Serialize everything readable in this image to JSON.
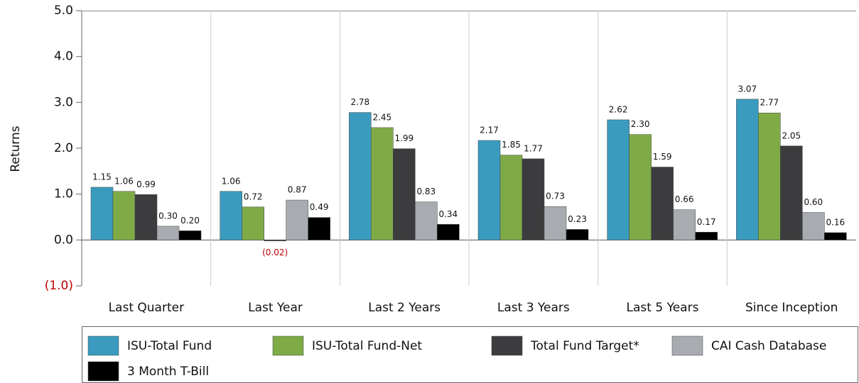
{
  "chart_data": {
    "type": "bar",
    "y_label": "Returns",
    "categories": [
      "Last Quarter",
      "Last Year",
      "Last 2 Years",
      "Last 3 Years",
      "Last 5 Years",
      "Since Inception"
    ],
    "series": [
      {
        "name": "ISU-Total Fund",
        "color": "#3a9bbf",
        "values": [
          1.15,
          1.06,
          2.78,
          2.17,
          2.62,
          3.07
        ],
        "value_labels": [
          "1.15",
          "1.06",
          "2.78",
          "2.17",
          "2.62",
          "3.07"
        ]
      },
      {
        "name": "ISU-Total Fund-Net",
        "color": "#7fab47",
        "values": [
          1.06,
          0.72,
          2.45,
          1.85,
          2.3,
          2.77
        ],
        "value_labels": [
          "1.06",
          "0.72",
          "2.45",
          "1.85",
          "2.30",
          "2.77"
        ]
      },
      {
        "name": "Total Fund Target*",
        "color": "#3c3c3e",
        "values": [
          0.99,
          -0.02,
          1.99,
          1.77,
          1.59,
          2.05
        ],
        "value_labels": [
          "0.99",
          "(0.02)",
          "1.99",
          "1.77",
          "1.59",
          "2.05"
        ]
      },
      {
        "name": "CAI Cash Database",
        "color": "#a8acb0",
        "values": [
          0.3,
          0.87,
          0.83,
          0.73,
          0.66,
          0.6
        ],
        "value_labels": [
          "0.30",
          "0.87",
          "0.83",
          "0.73",
          "0.66",
          "0.60"
        ]
      },
      {
        "name": "3 Month T-Bill",
        "color": "#000000",
        "values": [
          0.2,
          0.49,
          0.34,
          0.23,
          0.17,
          0.16
        ],
        "value_labels": [
          "0.20",
          "0.49",
          "0.34",
          "0.23",
          "0.17",
          "0.16"
        ]
      }
    ],
    "ylim": [
      -1,
      5
    ],
    "yticks": [
      {
        "value": -1,
        "label": "(1.0)"
      },
      {
        "value": 0,
        "label": "0.0"
      },
      {
        "value": 1,
        "label": "1.0"
      },
      {
        "value": 2,
        "label": "2.0"
      },
      {
        "value": 3,
        "label": "3.0"
      },
      {
        "value": 4,
        "label": "4.0"
      },
      {
        "value": 5,
        "label": "5.0"
      }
    ],
    "negative_color": "#c00000"
  }
}
